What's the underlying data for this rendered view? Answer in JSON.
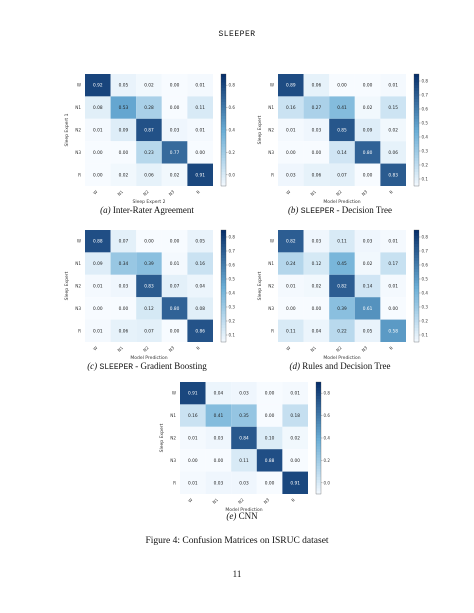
{
  "header": {
    "running_title": "SLEEPER"
  },
  "classes": [
    "W",
    "N1",
    "N2",
    "N3",
    "R"
  ],
  "colorscale": {
    "low": "#f7fbff",
    "mid": "#6baed6",
    "high": "#08306b"
  },
  "panels": [
    {
      "id": "a",
      "caption_letter": "(a)",
      "caption_mono": "",
      "caption_text": "Inter-Rater Agreement",
      "chart_data": {
        "type": "heatmap",
        "title": "",
        "xlabel": "Sleep Expert 2",
        "ylabel": "Sleep Expert 1",
        "x_ticks": [
          "W",
          "N1",
          "N2",
          "N3",
          "R"
        ],
        "y_ticks": [
          "W",
          "N1",
          "N2",
          "N3",
          "R"
        ],
        "values": [
          [
            0.92,
            0.05,
            0.02,
            0.0,
            0.01
          ],
          [
            0.08,
            0.53,
            0.28,
            0.0,
            0.11
          ],
          [
            0.01,
            0.09,
            0.87,
            0.03,
            0.01
          ],
          [
            0.0,
            0.0,
            0.23,
            0.77,
            0.0
          ],
          [
            0.0,
            0.02,
            0.06,
            0.02,
            0.91
          ]
        ],
        "colorbar_ticks": [
          "0.8",
          "0.6",
          "0.4",
          "0.2",
          "0.0"
        ]
      }
    },
    {
      "id": "b",
      "caption_letter": "(b)",
      "caption_mono": "SLEEPER",
      "caption_text": " - Decision Tree",
      "chart_data": {
        "type": "heatmap",
        "title": "",
        "xlabel": "Model Prediction",
        "ylabel": "Sleep Expert",
        "x_ticks": [
          "W",
          "N1",
          "N2",
          "N3",
          "R"
        ],
        "y_ticks": [
          "W",
          "N1",
          "N2",
          "N3",
          "R"
        ],
        "values": [
          [
            0.89,
            0.06,
            0.0,
            0.0,
            0.01
          ],
          [
            0.16,
            0.27,
            0.41,
            0.02,
            0.15
          ],
          [
            0.01,
            0.03,
            0.85,
            0.09,
            0.02
          ],
          [
            0.0,
            0.0,
            0.14,
            0.8,
            0.06
          ],
          [
            0.03,
            0.06,
            0.07,
            0.0,
            0.83
          ]
        ],
        "colorbar_ticks": [
          "0.8",
          "0.7",
          "0.6",
          "0.5",
          "0.4",
          "0.3",
          "0.2",
          "0.1"
        ]
      }
    },
    {
      "id": "c",
      "caption_letter": "(c)",
      "caption_mono": "SLEEPER",
      "caption_text": " - Gradient Boosting",
      "chart_data": {
        "type": "heatmap",
        "title": "",
        "xlabel": "Model Prediction",
        "ylabel": "Sleep Expert",
        "x_ticks": [
          "W",
          "N1",
          "N2",
          "N3",
          "R"
        ],
        "y_ticks": [
          "W",
          "N1",
          "N2",
          "N3",
          "R"
        ],
        "values": [
          [
            0.88,
            0.07,
            0.0,
            0.0,
            0.05
          ],
          [
            0.09,
            0.34,
            0.39,
            0.01,
            0.16
          ],
          [
            0.01,
            0.03,
            0.83,
            0.07,
            0.04
          ],
          [
            0.0,
            0.0,
            0.12,
            0.8,
            0.08
          ],
          [
            0.01,
            0.06,
            0.07,
            0.0,
            0.86
          ]
        ],
        "colorbar_ticks": [
          "0.8",
          "0.7",
          "0.6",
          "0.5",
          "0.4",
          "0.3",
          "0.2",
          "0.1"
        ]
      }
    },
    {
      "id": "d",
      "caption_letter": "(d)",
      "caption_mono": "",
      "caption_text": "Rules and Decision Tree",
      "chart_data": {
        "type": "heatmap",
        "title": "",
        "xlabel": "Model Prediction",
        "ylabel": "Sleep Expert",
        "x_ticks": [
          "W",
          "N1",
          "N2",
          "N3",
          "R"
        ],
        "y_ticks": [
          "W",
          "N1",
          "N2",
          "N3",
          "R"
        ],
        "values": [
          [
            0.82,
            0.03,
            0.11,
            0.03,
            0.01
          ],
          [
            0.24,
            0.12,
            0.45,
            0.02,
            0.17
          ],
          [
            0.01,
            0.02,
            0.82,
            0.14,
            0.01
          ],
          [
            0.0,
            0.0,
            0.39,
            0.61,
            0.0
          ],
          [
            0.11,
            0.04,
            0.22,
            0.05,
            0.58
          ]
        ],
        "colorbar_ticks": [
          "0.8",
          "0.7",
          "0.6",
          "0.5",
          "0.4",
          "0.3",
          "0.2",
          "0.1"
        ]
      }
    },
    {
      "id": "e",
      "caption_letter": "(e)",
      "caption_mono": "",
      "caption_text": "CNN",
      "chart_data": {
        "type": "heatmap",
        "title": "",
        "xlabel": "Model Prediction",
        "ylabel": "Sleep Expert",
        "x_ticks": [
          "W",
          "N1",
          "N2",
          "N3",
          "R"
        ],
        "y_ticks": [
          "W",
          "N1",
          "N2",
          "N3",
          "R"
        ],
        "values": [
          [
            0.91,
            0.04,
            0.03,
            0.0,
            0.01
          ],
          [
            0.16,
            0.41,
            0.35,
            0.0,
            0.18
          ],
          [
            0.01,
            0.03,
            0.84,
            0.1,
            0.02
          ],
          [
            0.0,
            0.0,
            0.11,
            0.88,
            0.0
          ],
          [
            0.01,
            0.03,
            0.03,
            0.0,
            0.91
          ]
        ],
        "colorbar_ticks": [
          "0.8",
          "0.6",
          "0.4",
          "0.2",
          "0.0"
        ]
      }
    }
  ],
  "figure_caption": "Figure 4: Confusion Matrices on ISRUC dataset",
  "page_number": "11"
}
